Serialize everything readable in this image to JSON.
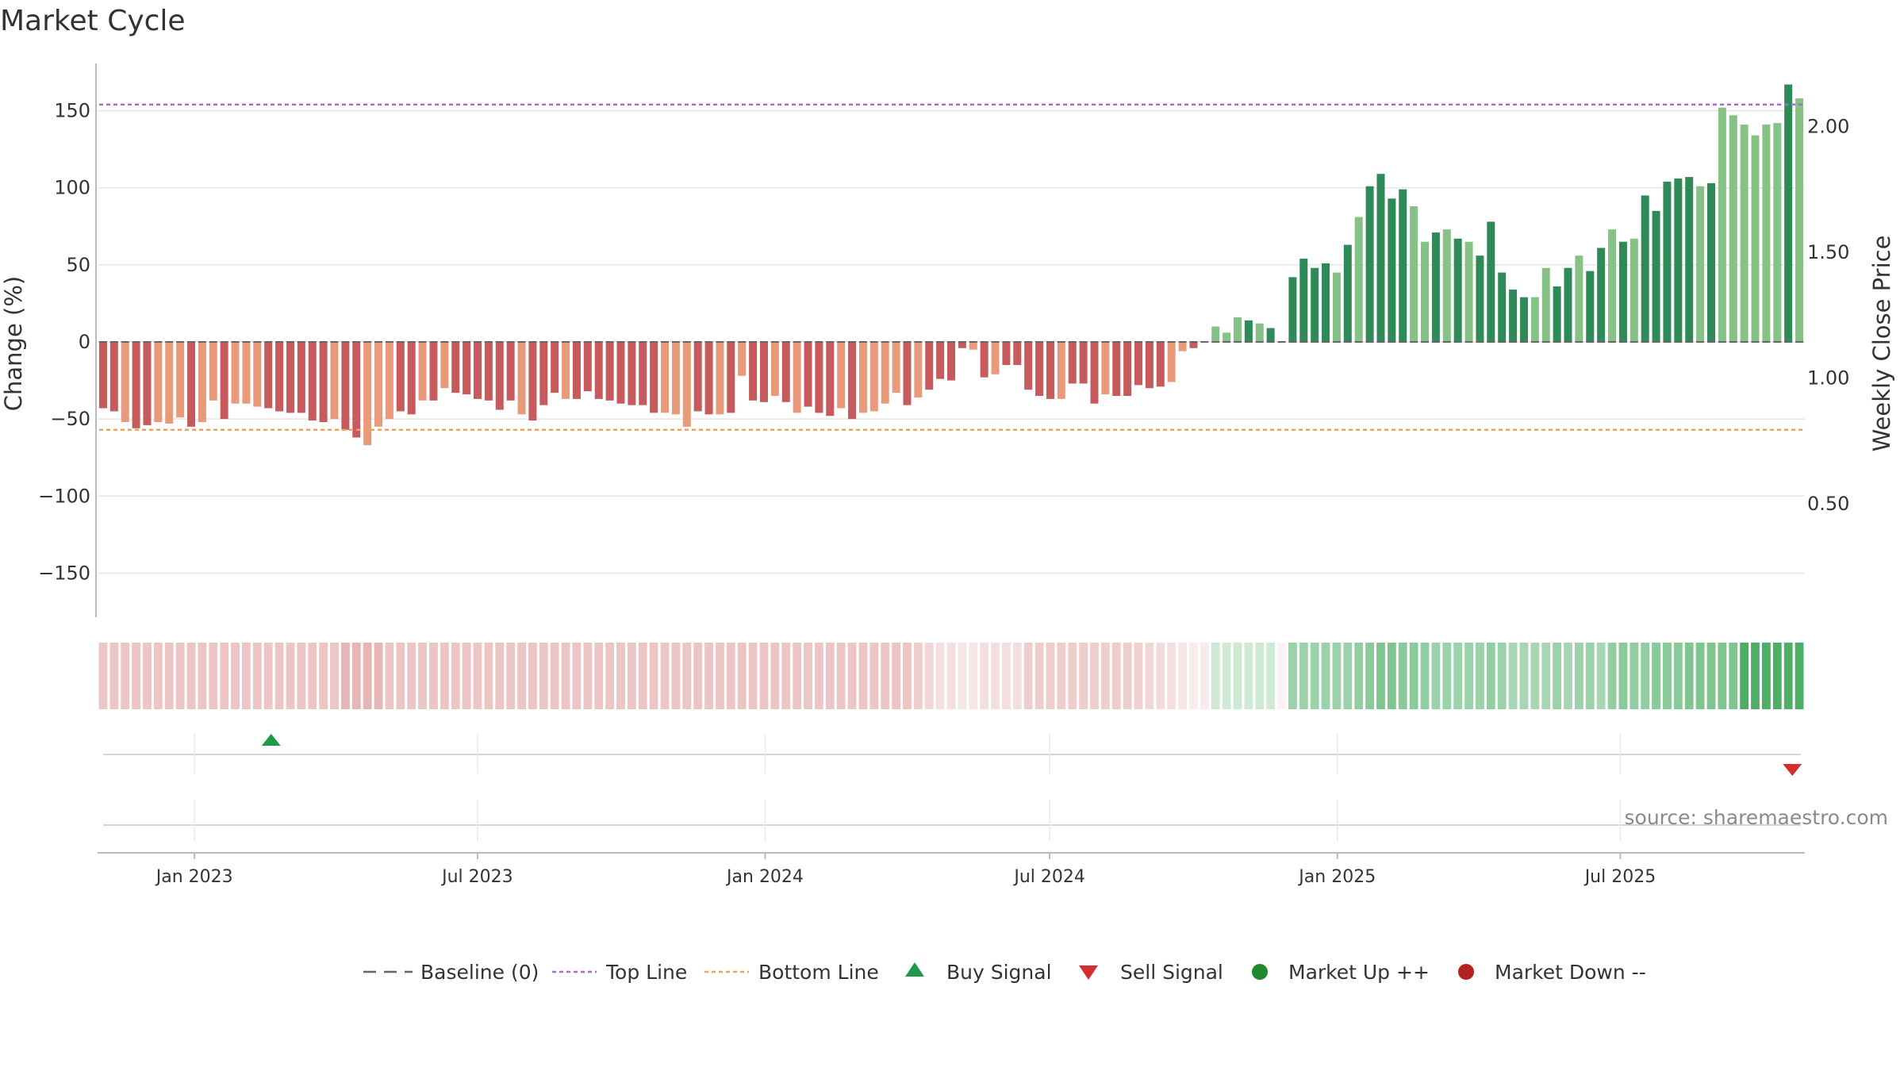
{
  "colors": {
    "neg_dark": "#c65a5c",
    "neg_light": "#e89a7a",
    "pos_dark": "#2e8a57",
    "pos_light": "#86c285",
    "top_line": "#a66bd9",
    "bottom_line": "#f2a05a",
    "buy": "#1f9a4a",
    "sell": "#d32f2f",
    "market_up": "#1f8a2e",
    "market_down": "#b22222",
    "grid": "#e6e6e6",
    "axis": "#bbbbbb"
  },
  "chart_data": {
    "type": "bar",
    "title": "Market Cycle",
    "ylabel": "Change (%)",
    "ylabel_right": "Weekly Close Price",
    "ylim": [
      -180,
      180
    ],
    "y_ticks": [
      {
        "value": 150,
        "label": "150"
      },
      {
        "value": 100,
        "label": "100"
      },
      {
        "value": 50,
        "label": "50"
      },
      {
        "value": 0,
        "label": "0"
      },
      {
        "value": -50,
        "label": "−50"
      },
      {
        "value": -100,
        "label": "−100"
      },
      {
        "value": -150,
        "label": "−150"
      }
    ],
    "ylim_right": [
      0.05,
      2.25
    ],
    "y_right_ticks": [
      {
        "value": 2.0,
        "label": "2.00"
      },
      {
        "value": 1.5,
        "label": "1.50"
      },
      {
        "value": 1.0,
        "label": "1.00"
      },
      {
        "value": 0.5,
        "label": "0.50"
      }
    ],
    "x_start": "2022-10-31",
    "x_end": "2025-10-27",
    "x_ticks": [
      {
        "date": "2023-01-01",
        "label": "Jan 2023"
      },
      {
        "date": "2023-07-01",
        "label": "Jul 2023"
      },
      {
        "date": "2024-01-01",
        "label": "Jan 2024"
      },
      {
        "date": "2024-07-01",
        "label": "Jul 2024"
      },
      {
        "date": "2025-01-01",
        "label": "Jan 2025"
      },
      {
        "date": "2025-07-01",
        "label": "Jul 2025"
      }
    ],
    "top_line": 154,
    "bottom_line": -57,
    "values": [
      -43,
      -45,
      -52,
      -56,
      -54,
      -52,
      -53,
      -49,
      -55,
      -52,
      -38,
      -50,
      -40,
      -40,
      -42,
      -43,
      -45,
      -46,
      -46,
      -51,
      -52,
      -50,
      -57,
      -62,
      -67,
      -55,
      -50,
      -45,
      -47,
      -38,
      -38,
      -30,
      -33,
      -34,
      -37,
      -38,
      -44,
      -38,
      -47,
      -51,
      -41,
      -33,
      -37,
      -37,
      -32,
      -37,
      -38,
      -40,
      -41,
      -41,
      -46,
      -46,
      -47,
      -55,
      -45,
      -47,
      -47,
      -46,
      -22,
      -38,
      -39,
      -35,
      -39,
      -46,
      -42,
      -46,
      -48,
      -43,
      -50,
      -46,
      -45,
      -40,
      -33,
      -41,
      -36,
      -31,
      -24,
      -25,
      -4,
      -5,
      -23,
      -21,
      -15,
      -15,
      -31,
      -35,
      -37,
      -37,
      -27,
      -27,
      -40,
      -34,
      -35,
      -35,
      -28,
      -30,
      -29,
      -26,
      -6,
      -4,
      0,
      10,
      6,
      16,
      14,
      12,
      9,
      0,
      42,
      54,
      48,
      51,
      45,
      63,
      81,
      101,
      109,
      93,
      99,
      88,
      65,
      71,
      73,
      67,
      65,
      56,
      78,
      45,
      34,
      29,
      29,
      48,
      36,
      48,
      56,
      46,
      61,
      73,
      65,
      67,
      95,
      85,
      104,
      106,
      107,
      101,
      103,
      152,
      147,
      141,
      134,
      141,
      142,
      167,
      158
    ],
    "shades": "ddlddllldlldlllddddddlddlllddldlddddddldddlddddddddlllddldlddldldddldlllldlddddldldddddldddldddddlldlllldlddddddldlddddlldldldddddllddlddldldddddldlllllldl",
    "cycle_strip": {
      "intensity": [
        0.35,
        0.35,
        0.35,
        0.35,
        0.35,
        0.35,
        0.35,
        0.35,
        0.35,
        0.35,
        0.35,
        0.35,
        0.35,
        0.35,
        0.35,
        0.35,
        0.35,
        0.35,
        0.35,
        0.35,
        0.35,
        0.35,
        0.45,
        0.45,
        0.45,
        0.45,
        0.35,
        0.35,
        0.35,
        0.35,
        0.35,
        0.35,
        0.35,
        0.35,
        0.35,
        0.35,
        0.35,
        0.35,
        0.35,
        0.35,
        0.35,
        0.35,
        0.35,
        0.35,
        0.35,
        0.35,
        0.35,
        0.35,
        0.35,
        0.35,
        0.35,
        0.35,
        0.35,
        0.35,
        0.35,
        0.35,
        0.35,
        0.35,
        0.35,
        0.35,
        0.35,
        0.35,
        0.35,
        0.35,
        0.35,
        0.35,
        0.35,
        0.35,
        0.35,
        0.35,
        0.35,
        0.35,
        0.35,
        0.35,
        0.3,
        0.25,
        0.2,
        0.2,
        0.15,
        0.15,
        0.2,
        0.2,
        0.2,
        0.2,
        0.3,
        0.3,
        0.3,
        0.3,
        0.3,
        0.3,
        0.3,
        0.3,
        0.3,
        0.3,
        0.28,
        0.25,
        0.22,
        0.2,
        0.15,
        0.12,
        0.25,
        0.25,
        0.25,
        0.25,
        0.25,
        0.25,
        0.25,
        0.15,
        0.5,
        0.5,
        0.5,
        0.5,
        0.5,
        0.5,
        0.55,
        0.6,
        0.65,
        0.65,
        0.6,
        0.6,
        0.55,
        0.5,
        0.5,
        0.5,
        0.5,
        0.5,
        0.55,
        0.5,
        0.45,
        0.45,
        0.45,
        0.45,
        0.5,
        0.45,
        0.5,
        0.5,
        0.45,
        0.55,
        0.6,
        0.55,
        0.55,
        0.6,
        0.6,
        0.6,
        0.65,
        0.65,
        0.65,
        0.65,
        0.65,
        0.9,
        0.9,
        0.9,
        0.9,
        0.9,
        0.9,
        0.9,
        0.9
      ]
    },
    "buy_signals": [
      "2023-02-19"
    ],
    "sell_signals": [
      "2025-10-19"
    ],
    "source_text": "source: sharemaestro.com",
    "legend": [
      {
        "key": "baseline",
        "label": "Baseline (0)"
      },
      {
        "key": "top",
        "label": "Top Line"
      },
      {
        "key": "bottom",
        "label": "Bottom Line"
      },
      {
        "key": "buy",
        "label": "Buy Signal"
      },
      {
        "key": "sell",
        "label": "Sell Signal"
      },
      {
        "key": "up",
        "label": "Market Up ++"
      },
      {
        "key": "down",
        "label": "Market Down --"
      }
    ]
  }
}
